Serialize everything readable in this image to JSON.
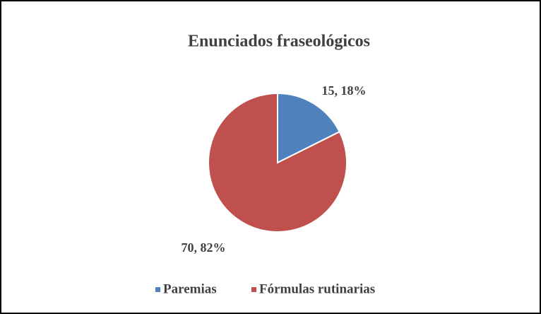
{
  "chart_data": {
    "type": "pie",
    "title": "Enunciados fraseológicos",
    "categories": [
      "Paremias",
      "Fórmulas rutinarias"
    ],
    "values": [
      15,
      70
    ],
    "value_labels": [
      "15, 18%",
      "70, 82%"
    ],
    "colors": [
      "#4f81bd",
      "#c0504d"
    ],
    "legend": "bottom"
  }
}
